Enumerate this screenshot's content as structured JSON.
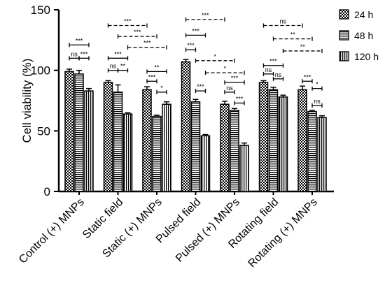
{
  "chart_data": {
    "type": "bar",
    "title": "",
    "xlabel": "",
    "ylabel": "Cell viability (%)",
    "ylim": [
      0,
      150
    ],
    "yticks": [
      0,
      50,
      100,
      150
    ],
    "grid": false,
    "legend_position": "top-right",
    "categories": [
      "Control (+) MNPs",
      "Static field",
      "Static (+) MNPs",
      "Pulsed field",
      "Pulsed (+) MNPs",
      "Rotating field",
      "Rotating (+) MNPs"
    ],
    "series": [
      {
        "name": "24 h",
        "pattern": "checker",
        "values": [
          99,
          90,
          84,
          107,
          72,
          90,
          84
        ],
        "errors": [
          2,
          1.5,
          2.5,
          2,
          2.5,
          1.5,
          3
        ]
      },
      {
        "name": "48 h",
        "pattern": "horizontal",
        "values": [
          97,
          82,
          62,
          74,
          67,
          84,
          66
        ],
        "errors": [
          3,
          6,
          1,
          2,
          1.5,
          2,
          1
        ]
      },
      {
        "name": "120 h",
        "pattern": "vertical",
        "values": [
          83,
          64,
          72,
          46,
          38,
          78,
          61
        ],
        "errors": [
          2,
          1,
          2,
          1,
          2,
          1.5,
          1.5
        ]
      }
    ],
    "annotations": [
      {
        "label": "***",
        "from": [
          0,
          0
        ],
        "to": [
          0,
          2
        ],
        "y": 121,
        "style": "solid"
      },
      {
        "label": "ns",
        "from": [
          0,
          0
        ],
        "to": [
          0,
          1
        ],
        "y": 110,
        "style": "solid"
      },
      {
        "label": "***",
        "from": [
          0,
          1
        ],
        "to": [
          0,
          2
        ],
        "y": 110,
        "style": "solid"
      },
      {
        "label": "***",
        "from": [
          1,
          0
        ],
        "to": [
          2,
          0
        ],
        "y": 137,
        "style": "dashed"
      },
      {
        "label": "***",
        "from": [
          1,
          1
        ],
        "to": [
          2,
          1
        ],
        "y": 128,
        "style": "dashed"
      },
      {
        "label": "***",
        "from": [
          1,
          2
        ],
        "to": [
          2,
          2
        ],
        "y": 119,
        "style": "dashed"
      },
      {
        "label": "***",
        "from": [
          1,
          0
        ],
        "to": [
          1,
          2
        ],
        "y": 110,
        "style": "solid"
      },
      {
        "label": "ns",
        "from": [
          1,
          0
        ],
        "to": [
          1,
          1
        ],
        "y": 100,
        "style": "solid"
      },
      {
        "label": "**",
        "from": [
          1,
          1
        ],
        "to": [
          1,
          2
        ],
        "y": 100,
        "style": "solid"
      },
      {
        "label": "**",
        "from": [
          2,
          0
        ],
        "to": [
          2,
          2
        ],
        "y": 99,
        "style": "solid"
      },
      {
        "label": "***",
        "from": [
          2,
          0
        ],
        "to": [
          2,
          1
        ],
        "y": 91,
        "style": "solid"
      },
      {
        "label": "*",
        "from": [
          2,
          1
        ],
        "to": [
          2,
          2
        ],
        "y": 82,
        "style": "solid"
      },
      {
        "label": "***",
        "from": [
          3,
          0
        ],
        "to": [
          4,
          0
        ],
        "y": 142,
        "style": "dashed"
      },
      {
        "label": "***",
        "from": [
          3,
          0
        ],
        "to": [
          3,
          2
        ],
        "y": 129,
        "style": "solid"
      },
      {
        "label": "***",
        "from": [
          3,
          0
        ],
        "to": [
          3,
          1
        ],
        "y": 117,
        "style": "solid"
      },
      {
        "label": "*",
        "from": [
          3,
          1
        ],
        "to": [
          4,
          1
        ],
        "y": 108,
        "style": "dashed"
      },
      {
        "label": "*",
        "from": [
          3,
          2
        ],
        "to": [
          4,
          2
        ],
        "y": 98,
        "style": "dashed"
      },
      {
        "label": "***",
        "from": [
          3,
          1
        ],
        "to": [
          3,
          2
        ],
        "y": 83,
        "style": "solid"
      },
      {
        "label": "***",
        "from": [
          4,
          0
        ],
        "to": [
          4,
          2
        ],
        "y": 90,
        "style": "solid"
      },
      {
        "label": "ns",
        "from": [
          4,
          0
        ],
        "to": [
          4,
          1
        ],
        "y": 82,
        "style": "solid"
      },
      {
        "label": "***",
        "from": [
          4,
          1
        ],
        "to": [
          4,
          2
        ],
        "y": 73,
        "style": "solid"
      },
      {
        "label": "ns",
        "from": [
          5,
          0
        ],
        "to": [
          6,
          0
        ],
        "y": 137,
        "style": "dashed"
      },
      {
        "label": "**",
        "from": [
          5,
          1
        ],
        "to": [
          6,
          1
        ],
        "y": 126,
        "style": "dashed"
      },
      {
        "label": "**",
        "from": [
          5,
          2
        ],
        "to": [
          6,
          2
        ],
        "y": 116,
        "style": "dashed"
      },
      {
        "label": "***",
        "from": [
          5,
          0
        ],
        "to": [
          5,
          2
        ],
        "y": 104,
        "style": "solid"
      },
      {
        "label": "ns",
        "from": [
          5,
          0
        ],
        "to": [
          5,
          1
        ],
        "y": 97,
        "style": "solid"
      },
      {
        "label": "ns",
        "from": [
          5,
          1
        ],
        "to": [
          5,
          2
        ],
        "y": 93,
        "style": "solid"
      },
      {
        "label": "***",
        "from": [
          6,
          0
        ],
        "to": [
          6,
          1
        ],
        "y": 91,
        "style": "solid"
      },
      {
        "label": "*",
        "from": [
          6,
          1
        ],
        "to": [
          6,
          2
        ],
        "y": 85,
        "style": "solid"
      },
      {
        "label": "ns",
        "from": [
          6,
          1
        ],
        "to": [
          6,
          2
        ],
        "y": 71,
        "style": "solid"
      }
    ]
  }
}
